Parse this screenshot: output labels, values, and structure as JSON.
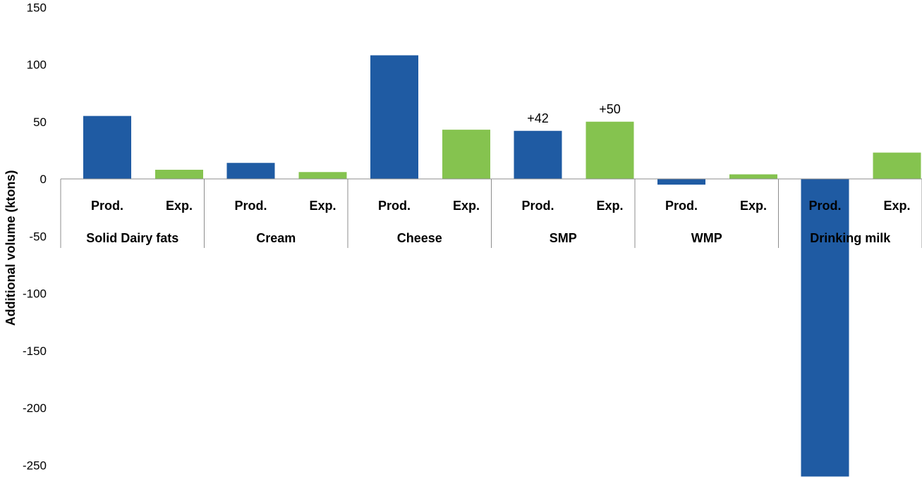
{
  "chart_data": {
    "type": "bar",
    "title": "",
    "ylabel": "Additional volume (ktons)",
    "ylim": [
      -260,
      150
    ],
    "yticks": [
      150,
      100,
      50,
      0,
      -50,
      -100,
      -150,
      -200,
      -250
    ],
    "grid": false,
    "groups": [
      {
        "name": "Solid Dairy fats",
        "bars": [
          {
            "label": "Prod.",
            "value": 55,
            "type": "prod"
          },
          {
            "label": "Exp.",
            "value": 8,
            "type": "exp"
          }
        ]
      },
      {
        "name": "Cream",
        "bars": [
          {
            "label": "Prod.",
            "value": 14,
            "type": "prod"
          },
          {
            "label": "Exp.",
            "value": 6,
            "type": "exp"
          }
        ]
      },
      {
        "name": "Cheese",
        "bars": [
          {
            "label": "Prod.",
            "value": 108,
            "type": "prod"
          },
          {
            "label": "Exp.",
            "value": 43,
            "type": "exp"
          }
        ]
      },
      {
        "name": "SMP",
        "bars": [
          {
            "label": "Prod.",
            "value": 42,
            "type": "prod",
            "data_label": "+42"
          },
          {
            "label": "Exp.",
            "value": 50,
            "type": "exp",
            "data_label": "+50"
          }
        ]
      },
      {
        "name": "WMP",
        "bars": [
          {
            "label": "Prod.",
            "value": -5,
            "type": "prod"
          },
          {
            "label": "Exp.",
            "value": 4,
            "type": "exp"
          }
        ]
      },
      {
        "name": "Drinking milk",
        "bars": [
          {
            "label": "Prod.",
            "value": -260,
            "type": "prod"
          },
          {
            "label": "Exp.",
            "value": 23,
            "type": "exp"
          }
        ]
      }
    ]
  },
  "colors": {
    "prod": "#1f5ba3",
    "exp": "#85c34f"
  }
}
